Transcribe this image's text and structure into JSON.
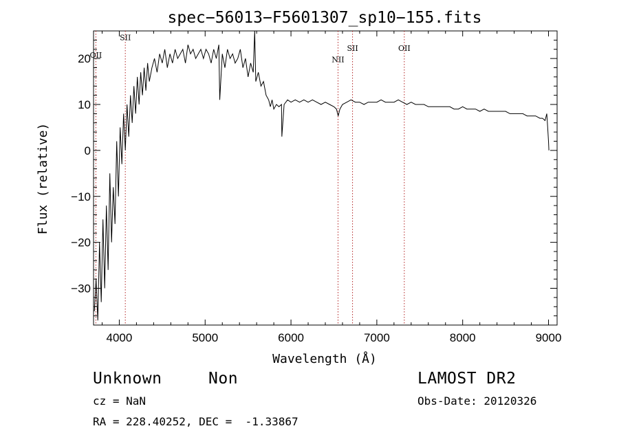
{
  "chart_data": {
    "type": "line",
    "title": "spec−56013−F5601307_sp10−155.fits",
    "xlabel": "Wavelength (Å)",
    "ylabel": "Flux (relative)",
    "xlim": [
      3700,
      9100
    ],
    "ylim": [
      -38,
      26
    ],
    "x_ticks": [
      4000,
      5000,
      6000,
      7000,
      8000,
      9000
    ],
    "x_tick_labels": [
      "4000",
      "5000",
      "6000",
      "7000",
      "8000",
      "9000"
    ],
    "y_ticks": [
      -30,
      -20,
      -10,
      0,
      10,
      20
    ],
    "y_tick_labels": [
      "−30",
      "−20",
      "−10",
      "0",
      "10",
      "20"
    ],
    "grid": false,
    "series": [
      {
        "x": [
          3710,
          3730,
          3750,
          3770,
          3790,
          3810,
          3830,
          3850,
          3870,
          3890,
          3910,
          3930,
          3950,
          3970,
          3990,
          4010,
          4030,
          4050,
          4070,
          4090,
          4110,
          4130,
          4150,
          4170,
          4190,
          4210,
          4230,
          4250,
          4270,
          4290,
          4310,
          4330,
          4350,
          4380,
          4410,
          4440,
          4470,
          4500,
          4530,
          4560,
          4590,
          4620,
          4650,
          4680,
          4710,
          4740,
          4770,
          4800,
          4830,
          4860,
          4890,
          4920,
          4950,
          4980,
          5010,
          5040,
          5070,
          5100,
          5130,
          5160,
          5170,
          5200,
          5230,
          5260,
          5290,
          5320,
          5350,
          5380,
          5410,
          5440,
          5470,
          5500,
          5530,
          5560,
          5577,
          5590,
          5620,
          5650,
          5680,
          5710,
          5740,
          5760,
          5780,
          5800,
          5830,
          5860,
          5890,
          5894,
          5920,
          5960,
          6000,
          6050,
          6100,
          6150,
          6200,
          6250,
          6300,
          6350,
          6400,
          6450,
          6500,
          6530,
          6550,
          6570,
          6600,
          6650,
          6700,
          6750,
          6800,
          6850,
          6900,
          6950,
          7000,
          7050,
          7100,
          7150,
          7200,
          7250,
          7300,
          7350,
          7400,
          7450,
          7500,
          7550,
          7600,
          7650,
          7700,
          7750,
          7800,
          7850,
          7900,
          7950,
          8000,
          8050,
          8100,
          8150,
          8200,
          8250,
          8300,
          8350,
          8400,
          8450,
          8500,
          8550,
          8600,
          8650,
          8700,
          8750,
          8800,
          8850,
          8900,
          8930,
          8960,
          8980,
          8990,
          9000,
          9005
        ],
        "y": [
          -35,
          -28,
          -37,
          -20,
          -33,
          -15,
          -30,
          -12,
          -26,
          -5,
          -20,
          -8,
          -16,
          2,
          -10,
          5,
          -3,
          8,
          0,
          10,
          3,
          12,
          6,
          14,
          8,
          16,
          10,
          17,
          12,
          18,
          13,
          19,
          15,
          18,
          20,
          17,
          21,
          19,
          22,
          18,
          21,
          19,
          22,
          20,
          21,
          22,
          19,
          23,
          21,
          22,
          20,
          21,
          22,
          20,
          22,
          21,
          19,
          22,
          20,
          23,
          11,
          21,
          18,
          22,
          20,
          21,
          19,
          20,
          22,
          18,
          20,
          16,
          19,
          17,
          26,
          15,
          17,
          14,
          15,
          12,
          11,
          9.5,
          11,
          9,
          10,
          9.5,
          10,
          3,
          10,
          11,
          10.5,
          11,
          10.5,
          11,
          10.5,
          11,
          10.5,
          10,
          10.5,
          10,
          9.5,
          9,
          7.5,
          9,
          10,
          10.5,
          11,
          10.5,
          10.5,
          10,
          10.5,
          10.5,
          10.5,
          11,
          10.5,
          10.5,
          10.5,
          11,
          10.5,
          10,
          10.5,
          10,
          10,
          10,
          9.5,
          9.5,
          9.5,
          9.5,
          9.5,
          9.5,
          9,
          9,
          9.5,
          9,
          9,
          9,
          8.5,
          9,
          8.5,
          8.5,
          8.5,
          8.5,
          8.5,
          8,
          8,
          8,
          8,
          7.5,
          7.5,
          7.5,
          7,
          7,
          6.5,
          8,
          5,
          2,
          0
        ]
      }
    ],
    "line_markers": [
      {
        "label": "OII",
        "x": 3727,
        "label_y_value": 20.2
      },
      {
        "label": "SII",
        "x": 4070,
        "label_y_value": 24
      },
      {
        "label": "NII",
        "x": 6548,
        "label_y_value": 19.2
      },
      {
        "label": "SII",
        "x": 6717,
        "label_y_value": 21.7
      },
      {
        "label": "OII",
        "x": 7320,
        "label_y_value": 21.7
      }
    ],
    "marker_color": "#b22222"
  },
  "info": {
    "class_label": "Unknown",
    "subclass_label": "Non",
    "survey_label": "LAMOST DR2",
    "cz_text": "cz = NaN",
    "obs_date_text": "Obs-Date: 20120326",
    "coords_text": "RA = 228.40252, DEC =  -1.33867"
  }
}
